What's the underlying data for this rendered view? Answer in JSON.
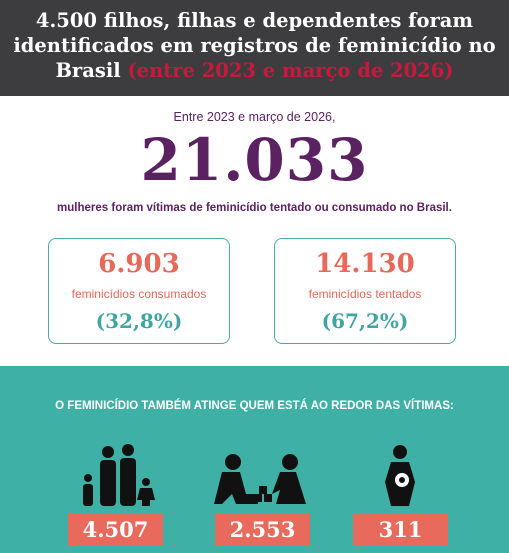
{
  "header": {
    "title": "4.500 filhos, filhas e dependentes foram identificados em registros de feminicídio no Brasil",
    "highlight": "(entre 2023 e março de 2026)"
  },
  "summary": {
    "intro": "Entre 2023 e março de 2026,",
    "total": "21.033",
    "caption": "mulheres foram vítimas de feminicídio tentado ou consumado no Brasil."
  },
  "cards": [
    {
      "value": "6.903",
      "label": "feminicídios consumados",
      "share": "(32,8%)"
    },
    {
      "value": "14.130",
      "label": "feminicídios tentados",
      "share": "(67,2%)"
    }
  ],
  "impact": {
    "heading": "O FEMINICÍDIO TAMBÉM ATINGE QUEM ESTÁ AO REDOR DAS VÍTIMAS:",
    "values": [
      "4.507",
      "2.553",
      "311"
    ]
  }
}
